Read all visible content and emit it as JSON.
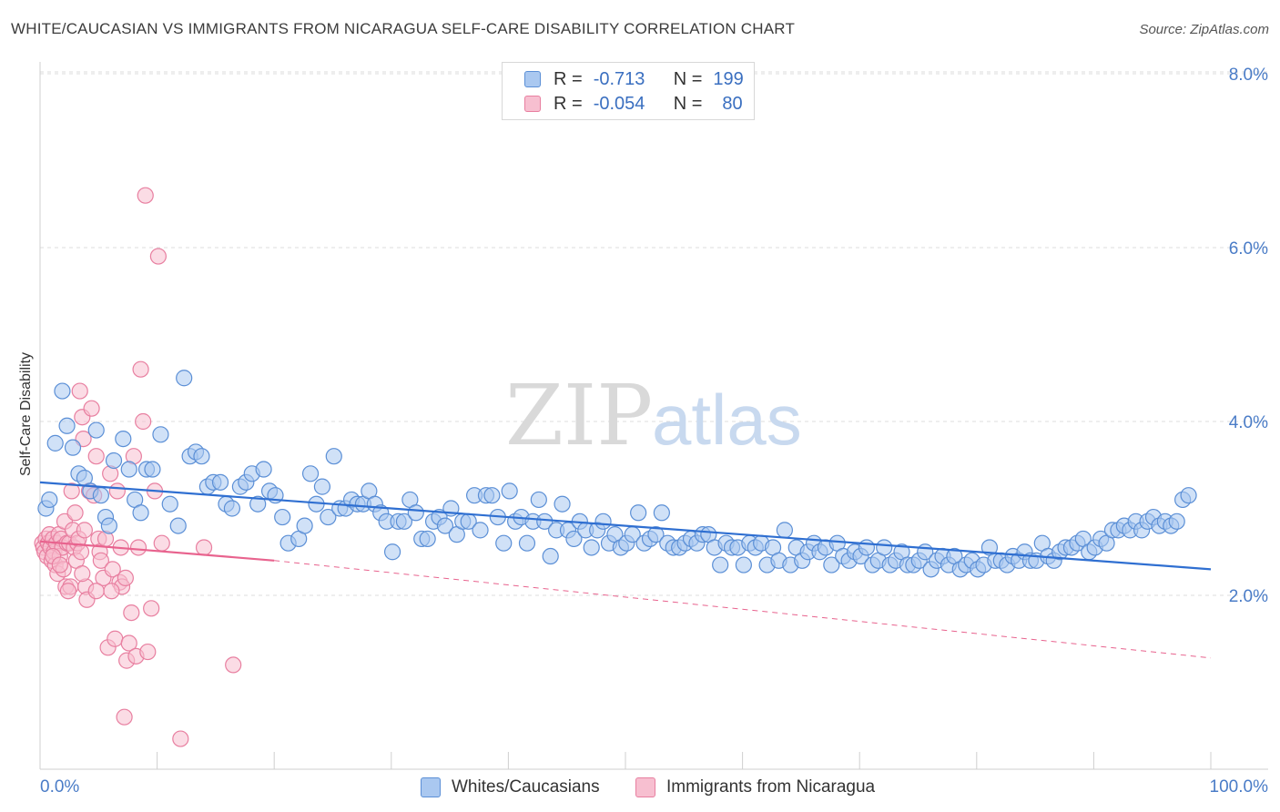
{
  "title": "WHITE/CAUCASIAN VS IMMIGRANTS FROM NICARAGUA SELF-CARE DISABILITY CORRELATION CHART",
  "source": "Source: ZipAtlas.com",
  "watermark": {
    "zip": "ZIP",
    "atlas": "atlas"
  },
  "legend": {
    "r_label": "R =",
    "n_label": "N =",
    "rows": [
      {
        "r_value": "-0.713",
        "n_value": "199",
        "fill": "#aac8f0",
        "stroke": "#5b8fd6"
      },
      {
        "r_value": "-0.054",
        "n_value": "80",
        "fill": "#f7bfd0",
        "stroke": "#e87fa0"
      }
    ]
  },
  "bottom_legend": [
    "Whites/Caucasians",
    "Immigrants from Nicaragua"
  ],
  "colors": {
    "blue_fill": "#aac8f0",
    "blue_stroke": "#5b8fd6",
    "blue_line": "#2f6fd1",
    "pink_fill": "#f7bfd0",
    "pink_stroke": "#e87fa0",
    "pink_line": "#e8638e",
    "grid": "#dcdcdc",
    "tick_text": "#4a7cc7"
  },
  "chart_data": {
    "type": "scatter",
    "title": "WHITE/CAUCASIAN VS IMMIGRANTS FROM NICARAGUA SELF-CARE DISABILITY CORRELATION CHART",
    "xlabel": "",
    "ylabel": "Self-Care Disability",
    "xlim": [
      0,
      100
    ],
    "ylim": [
      0,
      8.4
    ],
    "x_tick_labels": {
      "left": "0.0%",
      "right": "100.0%"
    },
    "y_ticks": [
      {
        "value": 2,
        "label": "2.0%"
      },
      {
        "value": 4,
        "label": "4.0%"
      },
      {
        "value": 6,
        "label": "6.0%"
      },
      {
        "value": 8,
        "label": "8.0%"
      }
    ],
    "series": [
      {
        "name": "Whites/Caucasians",
        "r": -0.713,
        "n": 199,
        "trend": {
          "x": [
            0,
            100
          ],
          "y": [
            3.3,
            2.3
          ],
          "dashed_extension": false
        },
        "points": [
          [
            0.5,
            3.0
          ],
          [
            0.8,
            3.1
          ],
          [
            1.3,
            3.75
          ],
          [
            1.9,
            4.35
          ],
          [
            2.3,
            3.95
          ],
          [
            2.8,
            3.7
          ],
          [
            3.3,
            3.4
          ],
          [
            3.8,
            3.35
          ],
          [
            4.3,
            3.2
          ],
          [
            4.8,
            3.9
          ],
          [
            5.2,
            3.15
          ],
          [
            5.6,
            2.9
          ],
          [
            5.9,
            2.8
          ],
          [
            6.3,
            3.55
          ],
          [
            7.1,
            3.8
          ],
          [
            7.6,
            3.45
          ],
          [
            8.1,
            3.1
          ],
          [
            8.6,
            2.95
          ],
          [
            9.1,
            3.45
          ],
          [
            9.6,
            3.45
          ],
          [
            10.3,
            3.85
          ],
          [
            11.1,
            3.05
          ],
          [
            11.8,
            2.8
          ],
          [
            12.3,
            4.5
          ],
          [
            12.8,
            3.6
          ],
          [
            13.3,
            3.65
          ],
          [
            13.8,
            3.6
          ],
          [
            14.3,
            3.25
          ],
          [
            14.8,
            3.3
          ],
          [
            15.4,
            3.3
          ],
          [
            15.9,
            3.05
          ],
          [
            16.4,
            3.0
          ],
          [
            17.1,
            3.25
          ],
          [
            17.6,
            3.3
          ],
          [
            18.1,
            3.4
          ],
          [
            18.6,
            3.05
          ],
          [
            19.1,
            3.45
          ],
          [
            19.6,
            3.2
          ],
          [
            20.1,
            3.15
          ],
          [
            20.7,
            2.9
          ],
          [
            21.2,
            2.6
          ],
          [
            22.1,
            2.65
          ],
          [
            22.6,
            2.8
          ],
          [
            23.1,
            3.4
          ],
          [
            23.6,
            3.05
          ],
          [
            24.1,
            3.25
          ],
          [
            24.6,
            2.9
          ],
          [
            25.1,
            3.6
          ],
          [
            25.6,
            3.0
          ],
          [
            26.1,
            3.0
          ],
          [
            26.6,
            3.1
          ],
          [
            27.1,
            3.05
          ],
          [
            27.6,
            3.05
          ],
          [
            28.1,
            3.2
          ],
          [
            28.6,
            3.05
          ],
          [
            29.1,
            2.95
          ],
          [
            29.6,
            2.85
          ],
          [
            30.1,
            2.5
          ],
          [
            30.6,
            2.85
          ],
          [
            31.1,
            2.85
          ],
          [
            31.6,
            3.1
          ],
          [
            32.1,
            2.95
          ],
          [
            32.6,
            2.65
          ],
          [
            33.1,
            2.65
          ],
          [
            33.6,
            2.85
          ],
          [
            34.1,
            2.9
          ],
          [
            34.6,
            2.8
          ],
          [
            35.1,
            3.0
          ],
          [
            35.6,
            2.7
          ],
          [
            36.1,
            2.85
          ],
          [
            36.6,
            2.85
          ],
          [
            37.1,
            3.15
          ],
          [
            37.6,
            2.75
          ],
          [
            38.1,
            3.15
          ],
          [
            38.6,
            3.15
          ],
          [
            39.1,
            2.9
          ],
          [
            39.6,
            2.6
          ],
          [
            40.1,
            3.2
          ],
          [
            40.6,
            2.85
          ],
          [
            41.1,
            2.9
          ],
          [
            41.6,
            2.6
          ],
          [
            42.1,
            2.85
          ],
          [
            42.6,
            3.1
          ],
          [
            43.1,
            2.85
          ],
          [
            43.6,
            2.45
          ],
          [
            44.1,
            2.75
          ],
          [
            44.6,
            3.05
          ],
          [
            45.1,
            2.75
          ],
          [
            45.6,
            2.65
          ],
          [
            46.1,
            2.85
          ],
          [
            46.6,
            2.75
          ],
          [
            47.1,
            2.55
          ],
          [
            47.6,
            2.75
          ],
          [
            48.1,
            2.85
          ],
          [
            48.6,
            2.6
          ],
          [
            49.1,
            2.7
          ],
          [
            49.6,
            2.55
          ],
          [
            50.1,
            2.6
          ],
          [
            50.6,
            2.7
          ],
          [
            51.1,
            2.95
          ],
          [
            51.6,
            2.6
          ],
          [
            52.1,
            2.65
          ],
          [
            52.6,
            2.7
          ],
          [
            53.1,
            2.95
          ],
          [
            53.6,
            2.6
          ],
          [
            54.1,
            2.55
          ],
          [
            54.6,
            2.55
          ],
          [
            55.1,
            2.6
          ],
          [
            55.6,
            2.65
          ],
          [
            56.1,
            2.6
          ],
          [
            56.6,
            2.7
          ],
          [
            57.1,
            2.7
          ],
          [
            57.6,
            2.55
          ],
          [
            58.1,
            2.35
          ],
          [
            58.6,
            2.6
          ],
          [
            59.1,
            2.55
          ],
          [
            59.6,
            2.55
          ],
          [
            60.1,
            2.35
          ],
          [
            60.6,
            2.6
          ],
          [
            61.1,
            2.55
          ],
          [
            61.6,
            2.6
          ],
          [
            62.1,
            2.35
          ],
          [
            62.6,
            2.55
          ],
          [
            63.1,
            2.4
          ],
          [
            63.6,
            2.75
          ],
          [
            64.1,
            2.35
          ],
          [
            64.6,
            2.55
          ],
          [
            65.1,
            2.4
          ],
          [
            65.6,
            2.5
          ],
          [
            66.1,
            2.6
          ],
          [
            66.6,
            2.5
          ],
          [
            67.1,
            2.55
          ],
          [
            67.6,
            2.35
          ],
          [
            68.1,
            2.6
          ],
          [
            68.6,
            2.45
          ],
          [
            69.1,
            2.4
          ],
          [
            69.6,
            2.5
          ],
          [
            70.1,
            2.45
          ],
          [
            70.6,
            2.55
          ],
          [
            71.1,
            2.35
          ],
          [
            71.6,
            2.4
          ],
          [
            72.1,
            2.55
          ],
          [
            72.6,
            2.35
          ],
          [
            73.1,
            2.4
          ],
          [
            73.6,
            2.5
          ],
          [
            74.1,
            2.35
          ],
          [
            74.6,
            2.35
          ],
          [
            75.1,
            2.4
          ],
          [
            75.6,
            2.5
          ],
          [
            76.1,
            2.3
          ],
          [
            76.6,
            2.4
          ],
          [
            77.1,
            2.45
          ],
          [
            77.6,
            2.35
          ],
          [
            78.1,
            2.45
          ],
          [
            78.6,
            2.3
          ],
          [
            79.1,
            2.35
          ],
          [
            79.6,
            2.4
          ],
          [
            80.1,
            2.3
          ],
          [
            80.6,
            2.35
          ],
          [
            81.1,
            2.55
          ],
          [
            81.6,
            2.4
          ],
          [
            82.1,
            2.4
          ],
          [
            82.6,
            2.35
          ],
          [
            83.1,
            2.45
          ],
          [
            83.6,
            2.4
          ],
          [
            84.1,
            2.5
          ],
          [
            84.6,
            2.4
          ],
          [
            85.1,
            2.4
          ],
          [
            85.6,
            2.6
          ],
          [
            86.1,
            2.45
          ],
          [
            86.6,
            2.4
          ],
          [
            87.1,
            2.5
          ],
          [
            87.6,
            2.55
          ],
          [
            88.1,
            2.55
          ],
          [
            88.6,
            2.6
          ],
          [
            89.1,
            2.65
          ],
          [
            89.6,
            2.5
          ],
          [
            90.1,
            2.55
          ],
          [
            90.6,
            2.65
          ],
          [
            91.1,
            2.6
          ],
          [
            91.6,
            2.75
          ],
          [
            92.1,
            2.75
          ],
          [
            92.6,
            2.8
          ],
          [
            93.1,
            2.75
          ],
          [
            93.6,
            2.85
          ],
          [
            94.1,
            2.75
          ],
          [
            94.6,
            2.85
          ],
          [
            95.1,
            2.9
          ],
          [
            95.6,
            2.8
          ],
          [
            96.1,
            2.85
          ],
          [
            96.6,
            2.8
          ],
          [
            97.1,
            2.85
          ],
          [
            97.6,
            3.1
          ],
          [
            98.1,
            3.15
          ]
        ]
      },
      {
        "name": "Immigrants from Nicaragua",
        "r": -0.054,
        "n": 80,
        "trend": {
          "x": [
            0,
            20
          ],
          "y": [
            2.62,
            2.4
          ],
          "dashed_to": [
            100,
            1.28
          ]
        },
        "points": [
          [
            0.2,
            2.6
          ],
          [
            0.3,
            2.55
          ],
          [
            0.4,
            2.5
          ],
          [
            0.5,
            2.65
          ],
          [
            0.6,
            2.45
          ],
          [
            0.7,
            2.6
          ],
          [
            0.8,
            2.7
          ],
          [
            0.9,
            2.55
          ],
          [
            1.0,
            2.4
          ],
          [
            1.1,
            2.65
          ],
          [
            1.2,
            2.5
          ],
          [
            1.3,
            2.35
          ],
          [
            1.4,
            2.6
          ],
          [
            1.5,
            2.25
          ],
          [
            1.6,
            2.7
          ],
          [
            1.7,
            2.45
          ],
          [
            1.8,
            2.65
          ],
          [
            1.9,
            2.55
          ],
          [
            2.0,
            2.3
          ],
          [
            2.1,
            2.85
          ],
          [
            2.2,
            2.1
          ],
          [
            2.3,
            2.6
          ],
          [
            2.5,
            2.6
          ],
          [
            2.6,
            2.1
          ],
          [
            2.7,
            3.2
          ],
          [
            2.8,
            2.75
          ],
          [
            2.9,
            2.55
          ],
          [
            3.0,
            2.95
          ],
          [
            3.1,
            2.4
          ],
          [
            3.2,
            2.6
          ],
          [
            3.3,
            2.65
          ],
          [
            3.4,
            4.35
          ],
          [
            3.5,
            2.5
          ],
          [
            3.6,
            4.05
          ],
          [
            3.7,
            3.8
          ],
          [
            3.8,
            2.75
          ],
          [
            3.9,
            2.1
          ],
          [
            4.0,
            1.95
          ],
          [
            4.2,
            3.2
          ],
          [
            4.4,
            4.15
          ],
          [
            4.6,
            3.15
          ],
          [
            4.8,
            3.6
          ],
          [
            5.0,
            2.65
          ],
          [
            5.1,
            2.5
          ],
          [
            5.2,
            2.4
          ],
          [
            5.4,
            2.2
          ],
          [
            5.6,
            2.65
          ],
          [
            5.8,
            1.4
          ],
          [
            6.0,
            3.4
          ],
          [
            6.2,
            2.3
          ],
          [
            6.4,
            1.5
          ],
          [
            6.6,
            3.2
          ],
          [
            6.8,
            2.15
          ],
          [
            7.0,
            2.1
          ],
          [
            7.2,
            0.6
          ],
          [
            7.4,
            1.25
          ],
          [
            7.6,
            1.45
          ],
          [
            7.8,
            1.8
          ],
          [
            8.0,
            3.6
          ],
          [
            8.2,
            1.3
          ],
          [
            8.4,
            2.55
          ],
          [
            8.6,
            4.6
          ],
          [
            8.8,
            4.0
          ],
          [
            9.0,
            6.6
          ],
          [
            9.2,
            1.35
          ],
          [
            9.5,
            1.85
          ],
          [
            9.8,
            3.2
          ],
          [
            10.1,
            5.9
          ],
          [
            10.4,
            2.6
          ],
          [
            12.0,
            0.35
          ],
          [
            14.0,
            2.55
          ],
          [
            16.5,
            1.2
          ],
          [
            1.1,
            2.45
          ],
          [
            1.7,
            2.35
          ],
          [
            2.4,
            2.05
          ],
          [
            3.6,
            2.25
          ],
          [
            4.8,
            2.05
          ],
          [
            6.1,
            2.05
          ],
          [
            6.9,
            2.55
          ],
          [
            7.3,
            2.2
          ]
        ]
      }
    ]
  }
}
